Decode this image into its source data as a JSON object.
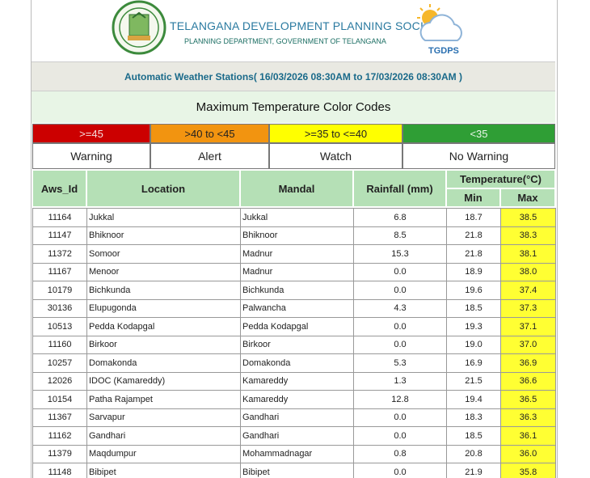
{
  "header": {
    "title": "TELANGANA DEVELOPMENT PLANNING SOCIETY",
    "subtitle": "PLANNING DEPARTMENT, GOVERNMENT OF TELANGANA",
    "logo_text": "TGDPS"
  },
  "info": "Automatic Weather Stations( 16/03/2026 08:30AM to 17/03/2026 08:30AM )",
  "legend": {
    "title": "Maximum Temperature Color Codes",
    "items": [
      {
        "range": ">=45",
        "label": "Warning"
      },
      {
        "range": ">40 to <45",
        "label": "Alert"
      },
      {
        "range": ">=35 to <=40",
        "label": "Watch"
      },
      {
        "range": "<35",
        "label": "No Warning"
      }
    ]
  },
  "table": {
    "headers": [
      "Aws_Id",
      "Location",
      "Mandal",
      "Rainfall (mm)",
      "Temperature(°C)",
      "Min",
      "Max"
    ],
    "rows": [
      [
        "11164",
        "Jukkal",
        "Jukkal",
        "6.8",
        "18.7",
        "38.5"
      ],
      [
        "11147",
        "Bhiknoor",
        "Bhiknoor",
        "8.5",
        "21.8",
        "38.3"
      ],
      [
        "11372",
        "Somoor",
        "Madnur",
        "15.3",
        "21.8",
        "38.1"
      ],
      [
        "11167",
        "Menoor",
        "Madnur",
        "0.0",
        "18.9",
        "38.0"
      ],
      [
        "10179",
        "Bichkunda",
        "Bichkunda",
        "0.0",
        "19.6",
        "37.4"
      ],
      [
        "30136",
        "Elupugonda",
        "Palwancha",
        "4.3",
        "18.5",
        "37.3"
      ],
      [
        "10513",
        "Pedda Kodapgal",
        "Pedda Kodapgal",
        "0.0",
        "19.3",
        "37.1"
      ],
      [
        "11160",
        "Birkoor",
        "Birkoor",
        "0.0",
        "19.0",
        "37.0"
      ],
      [
        "10257",
        "Domakonda",
        "Domakonda",
        "5.3",
        "16.9",
        "36.9"
      ],
      [
        "12026",
        "IDOC (Kamareddy)",
        "Kamareddy",
        "1.3",
        "21.5",
        "36.6"
      ],
      [
        "10154",
        "Patha Rajampet",
        "Kamareddy",
        "12.8",
        "19.4",
        "36.5"
      ],
      [
        "11367",
        "Sarvapur",
        "Gandhari",
        "0.0",
        "18.3",
        "36.3"
      ],
      [
        "11162",
        "Gandhari",
        "Gandhari",
        "0.0",
        "18.5",
        "36.1"
      ],
      [
        "11379",
        "Maqdumpur",
        "Mohammadnagar",
        "0.8",
        "20.8",
        "36.0"
      ],
      [
        "11148",
        "Bibipet",
        "Bibipet",
        "0.0",
        "21.9",
        "35.8"
      ]
    ]
  }
}
